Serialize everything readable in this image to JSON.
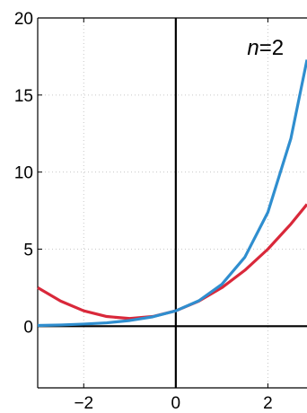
{
  "chart_data": {
    "type": "line",
    "title": "",
    "xlabel": "",
    "ylabel": "",
    "xlim": [
      -3,
      2.85
    ],
    "ylim": [
      -4,
      20
    ],
    "grid": true,
    "x_ticks": [
      {
        "value": -2,
        "label": "−2"
      },
      {
        "value": 0,
        "label": "0"
      },
      {
        "value": 2,
        "label": "2"
      }
    ],
    "y_ticks": [
      {
        "value": 0,
        "label": "0"
      },
      {
        "value": 5,
        "label": "5"
      },
      {
        "value": 10,
        "label": "10"
      },
      {
        "value": 15,
        "label": "15"
      },
      {
        "value": 20,
        "label": "20"
      }
    ],
    "annotation": {
      "italic": "n",
      "rest": "=2",
      "x": 1.55,
      "y": 17.6
    },
    "series": [
      {
        "color": "#d9283a",
        "x": [
          -3,
          -2.5,
          -2,
          -1.5,
          -1,
          -0.5,
          0,
          0.5,
          1,
          1.5,
          2,
          2.5,
          2.85
        ],
        "y": [
          2.5,
          1.63,
          1.0,
          0.63,
          0.5,
          0.63,
          1.0,
          1.63,
          2.5,
          3.63,
          5.0,
          6.63,
          7.91
        ]
      },
      {
        "color": "#2f8ecf",
        "x": [
          -3,
          -2.5,
          -2,
          -1.5,
          -1,
          -0.5,
          0,
          0.5,
          1,
          1.5,
          2,
          2.5,
          2.85
        ],
        "y": [
          0.05,
          0.08,
          0.14,
          0.22,
          0.37,
          0.61,
          1.0,
          1.65,
          2.72,
          4.48,
          7.39,
          12.18,
          17.29
        ]
      }
    ]
  }
}
